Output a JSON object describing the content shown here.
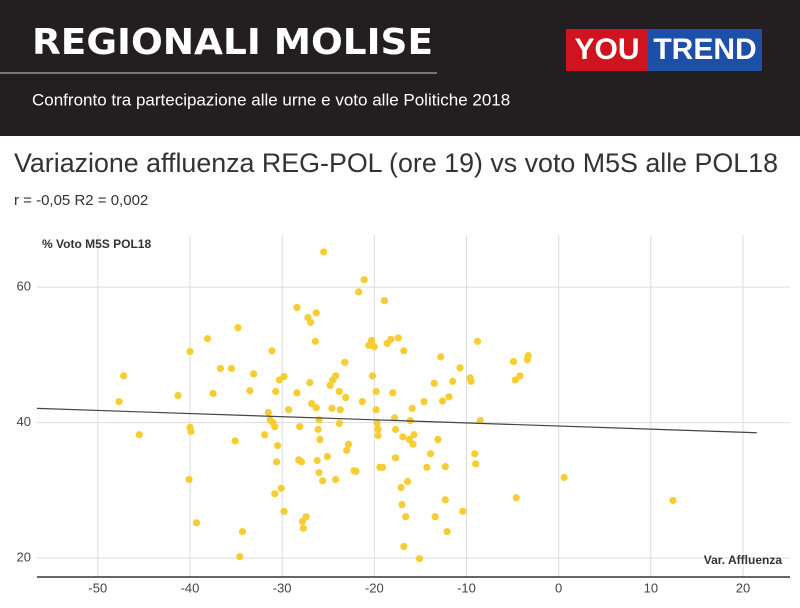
{
  "header": {
    "title": "REGIONALI MOLISE",
    "subtitle": "Confronto tra partecipazione alle urne e voto alle Politiche 2018",
    "logo_left": "YOU",
    "logo_right": "TREND"
  },
  "chart_data": {
    "type": "scatter",
    "title": "Variazione affluenza REG-POL (ore 19) vs voto M5S alle POL18",
    "subtitle": "r = -0,05 R2 = 0,002",
    "y_label": "% Voto M5S POL18",
    "x_label": "Var. Affluenza",
    "color": "#f6cd32",
    "grid": true,
    "xlim": [
      -56.6,
      25.1
    ],
    "ylim": [
      17.2,
      67.7
    ],
    "xticks": [
      -50,
      -40,
      -30,
      -20,
      -10,
      0,
      10,
      20
    ],
    "yticks": [
      20,
      40,
      60
    ],
    "trendline": {
      "x": [
        -56.6,
        21.5
      ],
      "y": [
        42.1,
        38.5
      ]
    },
    "x": [
      -47.7,
      -47.2,
      -45.5,
      -41.3,
      -40.0,
      -40.0,
      -39.9,
      -40.1,
      -39.3,
      -38.1,
      -37.5,
      -36.7,
      -35.5,
      -34.8,
      -35.1,
      -34.6,
      -34.3,
      -33.5,
      -33.1,
      -31.9,
      -31.5,
      -31.3,
      -31.1,
      -31.0,
      -30.8,
      -30.7,
      -30.6,
      -30.5,
      -30.3,
      -29.8,
      -30.8,
      -30.1,
      -29.8,
      -29.3,
      -28.4,
      -28.4,
      -28.1,
      -27.8,
      -27.7,
      -27.4,
      -28.2,
      -27.9,
      -27.2,
      -26.9,
      -26.3,
      -26.4,
      -27.0,
      -26.8,
      -26.3,
      -26.1,
      -25.9,
      -26.0,
      -26.2,
      -26.0,
      -25.6,
      -25.1,
      -25.5,
      -24.8,
      -24.5,
      -24.6,
      -24.2,
      -23.8,
      -23.7,
      -23.8,
      -24.2,
      -23.2,
      -23.1,
      -23.0,
      -22.8,
      -22.2,
      -22.0,
      -21.7,
      -21.3,
      -21.1,
      -20.6,
      -20.3,
      -20.2,
      -20.0,
      -19.8,
      -19.8,
      -19.7,
      -19.6,
      -19.6,
      -19.4,
      -19.1,
      -18.9,
      -18.6,
      -18.2,
      -18.0,
      -17.8,
      -17.7,
      -17.7,
      -17.4,
      -17.1,
      -17.0,
      -16.9,
      -16.8,
      -16.8,
      -16.6,
      -16.4,
      -16.2,
      -16.1,
      -15.9,
      -15.8,
      -15.7,
      -15.1,
      -14.6,
      -14.3,
      -13.9,
      -13.5,
      -13.4,
      -13.1,
      -12.8,
      -12.6,
      -12.3,
      -12.3,
      -12.1,
      -11.9,
      -11.5,
      -10.7,
      -10.4,
      -9.6,
      -9.5,
      -9.1,
      -9.0,
      -8.8,
      -8.5,
      -4.9,
      -4.7,
      -4.6,
      -4.2,
      -3.4,
      -3.3,
      0.6,
      12.4
    ],
    "y": [
      43.1,
      46.9,
      38.2,
      44.0,
      50.5,
      39.3,
      38.7,
      31.6,
      25.2,
      52.4,
      44.3,
      48.0,
      48.0,
      54.0,
      37.3,
      20.2,
      23.9,
      44.7,
      47.2,
      38.2,
      41.5,
      40.4,
      50.6,
      40.0,
      39.4,
      44.6,
      34.2,
      36.6,
      46.3,
      46.8,
      29.5,
      30.3,
      26.9,
      41.9,
      57.0,
      44.4,
      39.4,
      25.4,
      24.4,
      26.1,
      34.5,
      34.2,
      55.5,
      54.8,
      56.2,
      52.0,
      45.9,
      42.8,
      42.2,
      39.0,
      37.5,
      40.4,
      34.4,
      32.6,
      31.4,
      35.0,
      65.2,
      45.5,
      46.3,
      42.1,
      46.9,
      44.6,
      41.9,
      39.9,
      31.6,
      48.9,
      43.7,
      35.9,
      36.8,
      32.9,
      32.8,
      59.3,
      43.1,
      61.1,
      51.4,
      52.1,
      46.9,
      51.2,
      44.6,
      41.9,
      39.9,
      39.0,
      38.1,
      33.4,
      33.4,
      58.0,
      51.7,
      52.3,
      44.4,
      40.7,
      39.0,
      34.8,
      52.5,
      30.4,
      27.9,
      37.9,
      21.7,
      50.6,
      26.1,
      31.3,
      37.5,
      40.3,
      42.1,
      36.8,
      38.2,
      19.9,
      43.1,
      33.4,
      35.4,
      45.8,
      26.1,
      37.5,
      49.7,
      43.2,
      33.5,
      28.6,
      23.9,
      43.8,
      46.1,
      48.1,
      26.9,
      46.6,
      46.1,
      35.4,
      33.9,
      52.0,
      40.3,
      49.0,
      46.3,
      28.9,
      46.9,
      49.3,
      49.9,
      31.9,
      28.5
    ]
  }
}
